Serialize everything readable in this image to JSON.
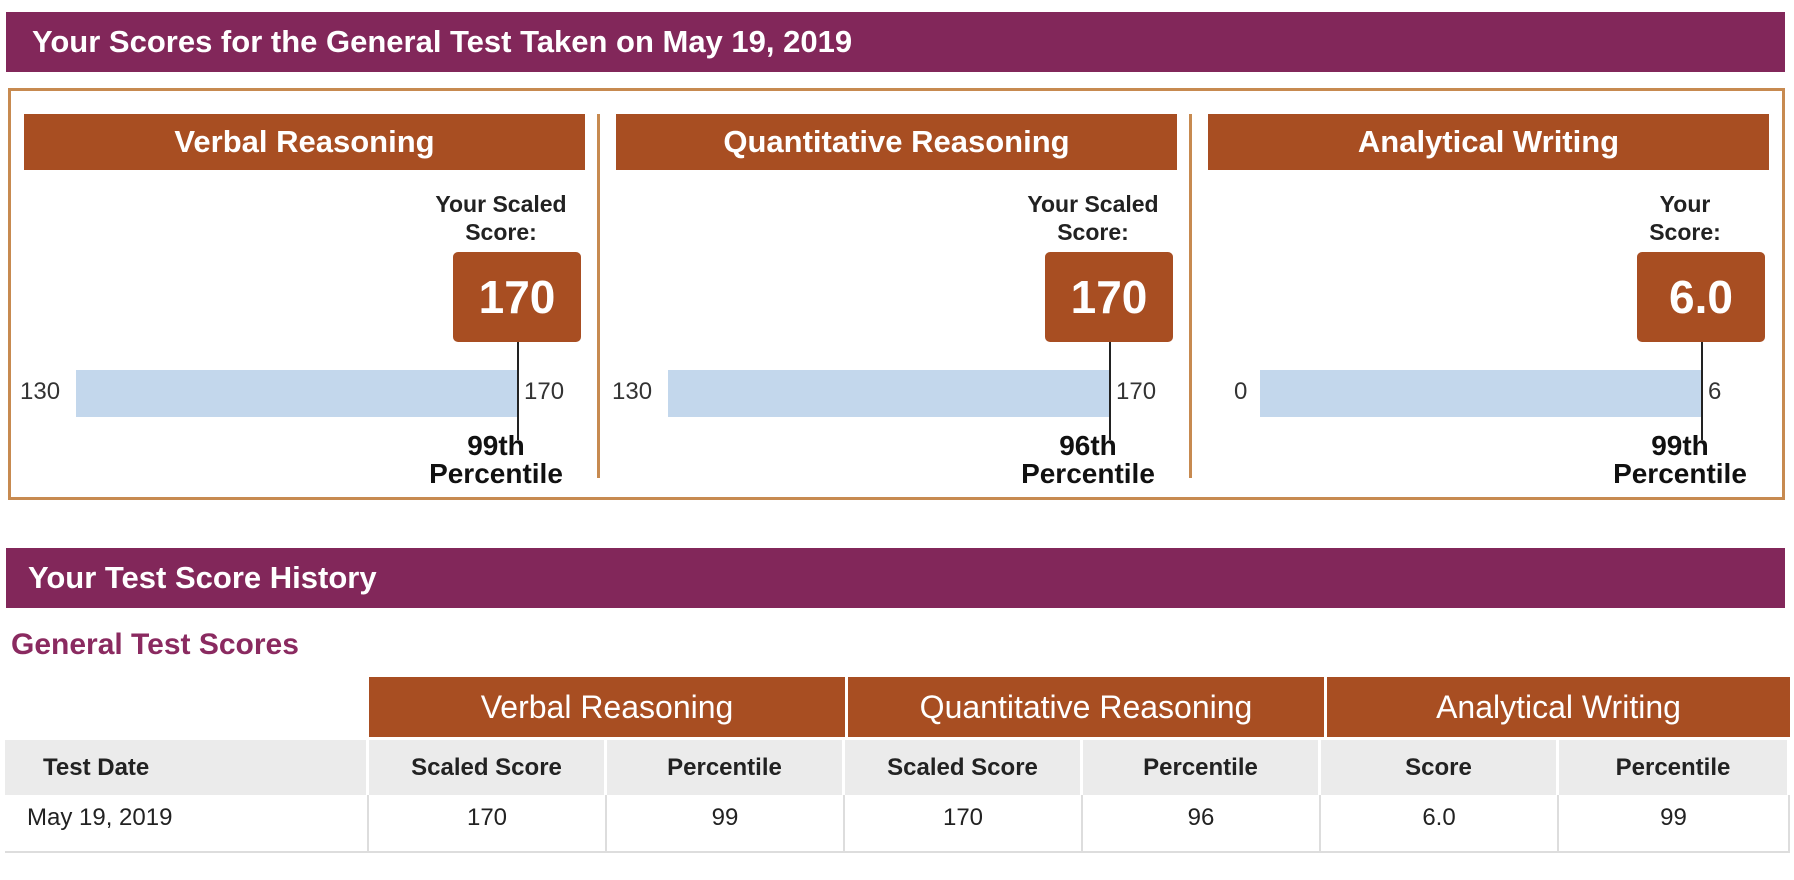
{
  "current_scores": {
    "title": "Your Scores for the General Test Taken on May 19, 2019",
    "sections": [
      {
        "name": "Verbal Reasoning",
        "caption_line1": "Your Scaled",
        "caption_line2": "Score:",
        "score": "170",
        "min": "130",
        "max": "170",
        "percentile_line1": "99th",
        "percentile_line2": "Percentile"
      },
      {
        "name": "Quantitative Reasoning",
        "caption_line1": "Your Scaled",
        "caption_line2": "Score:",
        "score": "170",
        "min": "130",
        "max": "170",
        "percentile_line1": "96th",
        "percentile_line2": "Percentile"
      },
      {
        "name": "Analytical Writing",
        "caption_line1": "Your",
        "caption_line2": "Score:",
        "score": "6.0",
        "min": "0",
        "max": "6",
        "percentile_line1": "99th",
        "percentile_line2": "Percentile"
      }
    ]
  },
  "history": {
    "title": "Your Test Score History",
    "subtitle": "General Test Scores",
    "group_headers": [
      "Verbal Reasoning",
      "Quantitative Reasoning",
      "Analytical Writing"
    ],
    "columns": [
      "Test Date",
      "Scaled Score",
      "Percentile",
      "Scaled Score",
      "Percentile",
      "Score",
      "Percentile"
    ],
    "rows": [
      [
        "May 19,  2019",
        "170",
        "99",
        "170",
        "96",
        "6.0",
        "99"
      ]
    ]
  },
  "colors": {
    "banner": "#82275a",
    "section_header": "#a84e22",
    "bar": "#c3d7ec",
    "subtitle": "#8a2a60"
  }
}
